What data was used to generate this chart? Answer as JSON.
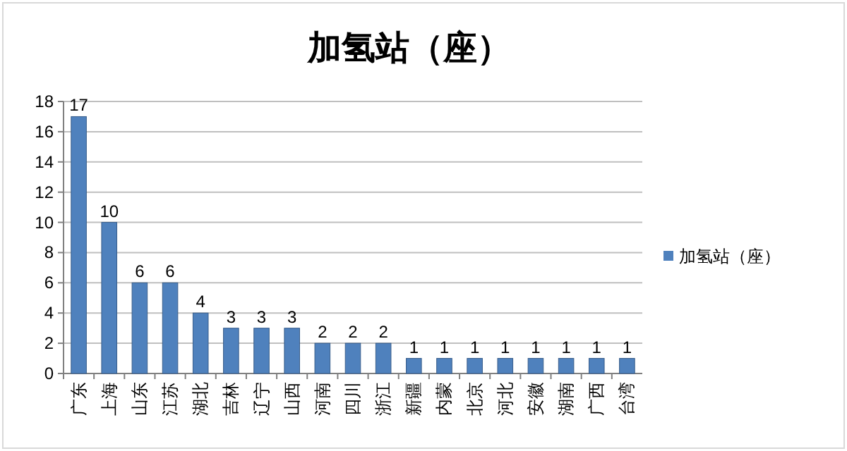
{
  "chart_data": {
    "type": "bar",
    "title": "加氢站（座）",
    "categories": [
      "广东",
      "上海",
      "山东",
      "江苏",
      "湖北",
      "吉林",
      "辽宁",
      "山西",
      "河南",
      "四川",
      "浙江",
      "新疆",
      "内蒙",
      "北京",
      "河北",
      "安徽",
      "湖南",
      "广西",
      "台湾"
    ],
    "series": [
      {
        "name": "加氢站（座）",
        "color": "#4f81bd",
        "values": [
          17,
          10,
          6,
          6,
          4,
          3,
          3,
          3,
          2,
          2,
          2,
          1,
          1,
          1,
          1,
          1,
          1,
          1,
          1
        ]
      }
    ],
    "ylim": [
      0,
      18
    ],
    "yticks": [
      0,
      2,
      4,
      6,
      8,
      10,
      12,
      14,
      16,
      18
    ],
    "grid": "y",
    "legend": "right",
    "data_labels": true
  }
}
